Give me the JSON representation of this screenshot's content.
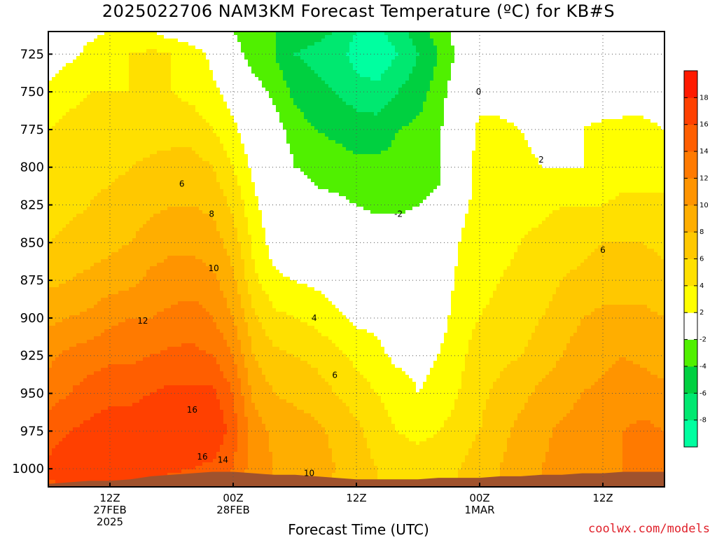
{
  "title": "2025022706 NAM3KM Forecast Temperature (ºC) for KB#S",
  "xlabel": "Forecast Time (UTC)",
  "credit": "coolwx.com/models",
  "colors": {
    "frame": "#000000",
    "grid": "#555555",
    "ground": "#a0522d",
    "zero_line": "#c0185a"
  },
  "chart_data": {
    "type": "heatmap",
    "title": "2025022706 NAM3KM Forecast Temperature (ºC) for KB#S",
    "xlabel": "Forecast Time (UTC)",
    "ylabel": "",
    "y_axis": "pressure (hPa), inverted",
    "yticks": [
      725,
      750,
      775,
      800,
      825,
      850,
      875,
      900,
      925,
      950,
      975,
      1000
    ],
    "xticks": [
      {
        "hour": 6,
        "lines": [
          "12Z",
          "27FEB",
          "2025"
        ]
      },
      {
        "hour": 18,
        "lines": [
          "00Z",
          "28FEB"
        ]
      },
      {
        "hour": 30,
        "lines": [
          "12Z"
        ]
      },
      {
        "hour": 42,
        "lines": [
          "00Z",
          "1MAR"
        ]
      },
      {
        "hour": 54,
        "lines": [
          "12Z"
        ]
      }
    ],
    "x_range_hours": [
      0,
      60
    ],
    "y_range_hpa": [
      710,
      1012
    ],
    "grid": true,
    "colorbar": {
      "levels": [
        -10,
        -8,
        -6,
        -4,
        -2,
        2,
        4,
        6,
        8,
        10,
        12,
        14,
        16,
        18,
        20
      ],
      "tick_labels": [
        "18",
        "16",
        "14",
        "12",
        "10",
        "8",
        "6",
        "4",
        "2",
        "-2",
        "-4",
        "-6",
        "-8"
      ],
      "colors": [
        "#00ffa0",
        "#00e870",
        "#00d040",
        "#50f000",
        "#ffffff",
        "#ffff00",
        "#ffe000",
        "#ffc800",
        "#ffae00",
        "#ff9400",
        "#ff7a00",
        "#ff5e00",
        "#ff4000",
        "#ff1a00"
      ]
    },
    "contour_labels": [
      {
        "text": "0",
        "hour": 41.9,
        "hpa": 750
      },
      {
        "text": "2",
        "hour": 48.0,
        "hpa": 795
      },
      {
        "text": "-2",
        "hour": 34.1,
        "hpa": 831
      },
      {
        "text": "6",
        "hour": 13.0,
        "hpa": 811
      },
      {
        "text": "8",
        "hour": 15.9,
        "hpa": 831
      },
      {
        "text": "10",
        "hour": 16.1,
        "hpa": 867
      },
      {
        "text": "12",
        "hour": 9.2,
        "hpa": 902
      },
      {
        "text": "4",
        "hour": 25.9,
        "hpa": 900
      },
      {
        "text": "6",
        "hour": 27.9,
        "hpa": 938
      },
      {
        "text": "16",
        "hour": 14.0,
        "hpa": 961
      },
      {
        "text": "16",
        "hour": 15.0,
        "hpa": 992
      },
      {
        "text": "14",
        "hour": 17.0,
        "hpa": 994
      },
      {
        "text": "10",
        "hour": 25.4,
        "hpa": 1003
      },
      {
        "text": "6",
        "hour": 54.0,
        "hpa": 855
      }
    ],
    "grid_hours": [
      0,
      2,
      4,
      6,
      8,
      10,
      12,
      14,
      16,
      18,
      20,
      22,
      24,
      26,
      28,
      30,
      32,
      34,
      36,
      38,
      40,
      42,
      44,
      46,
      48,
      50,
      52,
      54,
      56,
      58,
      60
    ],
    "grid_levels": [
      710,
      725,
      750,
      775,
      800,
      825,
      850,
      875,
      900,
      925,
      950,
      975,
      1000,
      1012
    ],
    "temperature_grid": [
      [
        -0.5,
        1.0,
        1.5,
        2.0,
        2.0,
        2.0,
        1.0,
        0.5,
        -0.5,
        -2.0,
        -3.0,
        -4.0,
        -5.0,
        -5.5,
        -6.0,
        -8.0,
        -8.5,
        -7.0,
        -5.0,
        -3.0,
        -1.0,
        -0.5,
        0.0,
        0.5,
        0.5,
        0.0,
        -1.0,
        -2.0,
        -0.5,
        0.0,
        0.0
      ],
      [
        0.5,
        1.5,
        2.5,
        3.5,
        4.0,
        4.5,
        4.0,
        3.0,
        1.5,
        -1.0,
        -3.0,
        -4.0,
        -6.0,
        -6.5,
        -7.0,
        -9.0,
        -9.5,
        -8.0,
        -6.0,
        -4.0,
        -1.5,
        -1.0,
        -0.5,
        0.0,
        0.0,
        0.0,
        -0.5,
        -1.5,
        0.0,
        0.5,
        0.5
      ],
      [
        2.5,
        3.5,
        4.0,
        4.0,
        4.0,
        4.0,
        4.0,
        3.5,
        2.5,
        1.0,
        -1.0,
        -2.5,
        -4.5,
        -5.5,
        -6.0,
        -7.0,
        -7.5,
        -6.0,
        -5.0,
        -3.0,
        -0.5,
        1.0,
        1.0,
        0.5,
        0.5,
        0.5,
        1.0,
        0.5,
        1.0,
        1.0,
        0.5
      ],
      [
        4.0,
        4.5,
        4.5,
        4.5,
        5.0,
        5.0,
        5.0,
        5.0,
        4.0,
        2.5,
        0.5,
        -1.0,
        -3.0,
        -4.0,
        -4.5,
        -5.0,
        -5.0,
        -4.0,
        -3.5,
        -2.5,
        0.5,
        2.5,
        2.5,
        2.0,
        1.5,
        1.5,
        2.0,
        2.5,
        2.5,
        2.5,
        2.0
      ],
      [
        4.5,
        5.0,
        5.5,
        5.5,
        6.0,
        6.5,
        7.0,
        7.0,
        6.0,
        4.0,
        1.5,
        0.0,
        -2.0,
        -2.5,
        -3.0,
        -3.5,
        -3.5,
        -3.5,
        -3.0,
        -2.5,
        1.0,
        2.5,
        2.5,
        2.5,
        2.0,
        2.0,
        2.0,
        2.5,
        3.0,
        3.0,
        3.0
      ],
      [
        5.0,
        5.5,
        6.0,
        6.5,
        7.0,
        7.5,
        8.0,
        8.0,
        7.5,
        5.5,
        2.5,
        0.5,
        -0.5,
        -1.5,
        -1.5,
        -2.0,
        -2.5,
        -2.5,
        -2.0,
        -1.5,
        1.5,
        2.5,
        3.0,
        3.5,
        3.5,
        4.0,
        4.0,
        4.0,
        4.5,
        4.5,
        4.5
      ],
      [
        6.0,
        6.5,
        7.0,
        7.5,
        8.0,
        9.0,
        9.5,
        9.5,
        9.0,
        7.0,
        3.5,
        1.0,
        0.0,
        0.0,
        0.0,
        -0.5,
        -0.5,
        -0.5,
        -0.5,
        -0.5,
        2.0,
        3.0,
        3.5,
        4.0,
        4.5,
        5.0,
        5.5,
        6.0,
        6.0,
        6.0,
        5.5
      ],
      [
        7.5,
        8.0,
        8.5,
        9.0,
        9.5,
        10.5,
        11.0,
        11.0,
        10.5,
        8.5,
        4.5,
        2.5,
        2.0,
        1.5,
        1.0,
        0.5,
        0.5,
        0.5,
        0.5,
        0.5,
        2.5,
        3.5,
        4.0,
        4.5,
        5.0,
        6.0,
        6.5,
        7.0,
        7.0,
        7.0,
        6.5
      ],
      [
        9.5,
        10.0,
        10.5,
        11.5,
        12.0,
        12.0,
        12.5,
        13.0,
        12.0,
        10.0,
        6.5,
        4.5,
        4.0,
        3.5,
        2.5,
        1.5,
        1.5,
        0.5,
        0.5,
        1.0,
        3.0,
        4.0,
        4.5,
        5.0,
        6.0,
        7.0,
        8.0,
        8.5,
        8.5,
        8.5,
        8.0
      ],
      [
        11.5,
        12.5,
        13.0,
        13.5,
        13.5,
        14.0,
        14.5,
        14.5,
        14.0,
        12.0,
        8.0,
        6.5,
        6.0,
        5.5,
        4.5,
        3.5,
        2.5,
        1.5,
        1.5,
        2.0,
        3.5,
        5.0,
        5.5,
        6.0,
        7.0,
        8.0,
        9.0,
        9.5,
        10.0,
        9.5,
        9.0
      ],
      [
        13.0,
        14.0,
        15.0,
        15.5,
        15.5,
        16.0,
        16.5,
        16.5,
        16.5,
        14.0,
        9.5,
        8.0,
        7.5,
        7.0,
        6.0,
        5.0,
        4.0,
        3.0,
        2.0,
        2.5,
        4.0,
        5.5,
        6.5,
        7.5,
        8.5,
        9.0,
        10.0,
        10.5,
        11.0,
        11.0,
        10.5
      ],
      [
        15.0,
        16.0,
        16.5,
        17.0,
        17.0,
        17.5,
        17.5,
        17.5,
        18.0,
        15.0,
        11.0,
        9.5,
        9.0,
        8.5,
        7.5,
        6.5,
        5.0,
        4.0,
        3.5,
        4.0,
        5.0,
        6.0,
        7.5,
        8.5,
        9.5,
        10.5,
        11.0,
        11.5,
        12.0,
        12.5,
        12.0
      ],
      [
        16.5,
        17.5,
        17.5,
        17.5,
        17.0,
        17.0,
        16.5,
        16.0,
        15.5,
        14.0,
        11.0,
        10.0,
        9.5,
        9.0,
        8.0,
        7.0,
        6.0,
        5.0,
        5.0,
        5.0,
        6.0,
        7.0,
        8.0,
        9.0,
        10.0,
        10.5,
        11.0,
        11.5,
        12.0,
        12.5,
        12.5
      ],
      [
        15.5,
        16.0,
        16.0,
        15.5,
        15.5,
        15.0,
        14.5,
        14.0,
        13.5,
        12.5,
        10.5,
        9.5,
        9.0,
        8.5,
        7.5,
        7.0,
        6.0,
        5.5,
        5.5,
        5.5,
        6.0,
        7.0,
        8.0,
        9.0,
        10.0,
        10.5,
        11.0,
        11.5,
        12.0,
        12.5,
        12.5
      ]
    ],
    "ground_hpa": [
      1010,
      1009,
      1008,
      1008,
      1007,
      1005,
      1004,
      1003,
      1002,
      1002,
      1003,
      1004,
      1004,
      1005,
      1006,
      1007,
      1007,
      1007,
      1007,
      1006,
      1006,
      1006,
      1005,
      1005,
      1004,
      1004,
      1003,
      1003,
      1002,
      1002,
      1002
    ]
  }
}
